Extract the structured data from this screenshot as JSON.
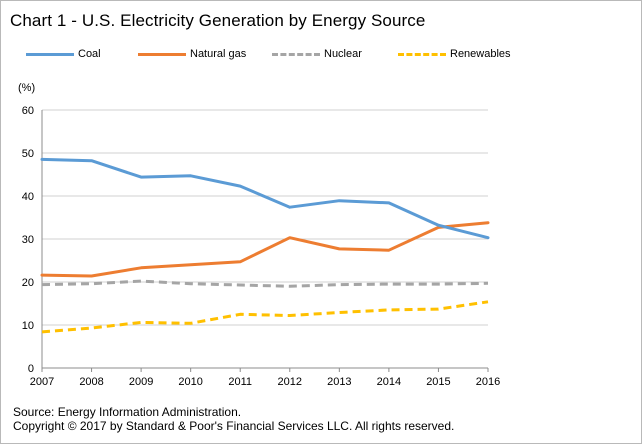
{
  "title": "Chart 1 - U.S. Electricity Generation by Energy Source",
  "source_note": "Source: Energy Information Administration.",
  "copyright_note": "Copyright © 2017 by Standard & Poor's Financial Services LLC. All rights reserved.",
  "chart_data": {
    "type": "line",
    "title": "Chart 1 - U.S. Electricity Generation by Energy Source",
    "ylabel": "(%)",
    "xlabel": "",
    "x": [
      "2007",
      "2008",
      "2009",
      "2010",
      "2011",
      "2012",
      "2013",
      "2014",
      "2015",
      "2016"
    ],
    "ylim": [
      0,
      60
    ],
    "yticks": [
      0,
      10,
      20,
      30,
      40,
      50,
      60
    ],
    "grid": true,
    "legend_position": "top",
    "series": [
      {
        "name": "Coal",
        "color": "#5b9bd5",
        "dash": "solid",
        "values": [
          48.5,
          48.2,
          44.4,
          44.7,
          42.3,
          37.4,
          38.9,
          38.4,
          33.2,
          30.3
        ]
      },
      {
        "name": "Natural gas",
        "color": "#ed7d31",
        "dash": "solid",
        "values": [
          21.6,
          21.4,
          23.3,
          24.0,
          24.7,
          30.3,
          27.7,
          27.4,
          32.7,
          33.8
        ]
      },
      {
        "name": "Nuclear",
        "color": "#a5a5a5",
        "dash": "dashed",
        "values": [
          19.4,
          19.6,
          20.2,
          19.6,
          19.3,
          19.0,
          19.4,
          19.5,
          19.5,
          19.7
        ]
      },
      {
        "name": "Renewables",
        "color": "#ffc000",
        "dash": "dashed",
        "values": [
          8.4,
          9.3,
          10.6,
          10.4,
          12.5,
          12.2,
          12.9,
          13.5,
          13.7,
          15.4
        ]
      }
    ]
  }
}
